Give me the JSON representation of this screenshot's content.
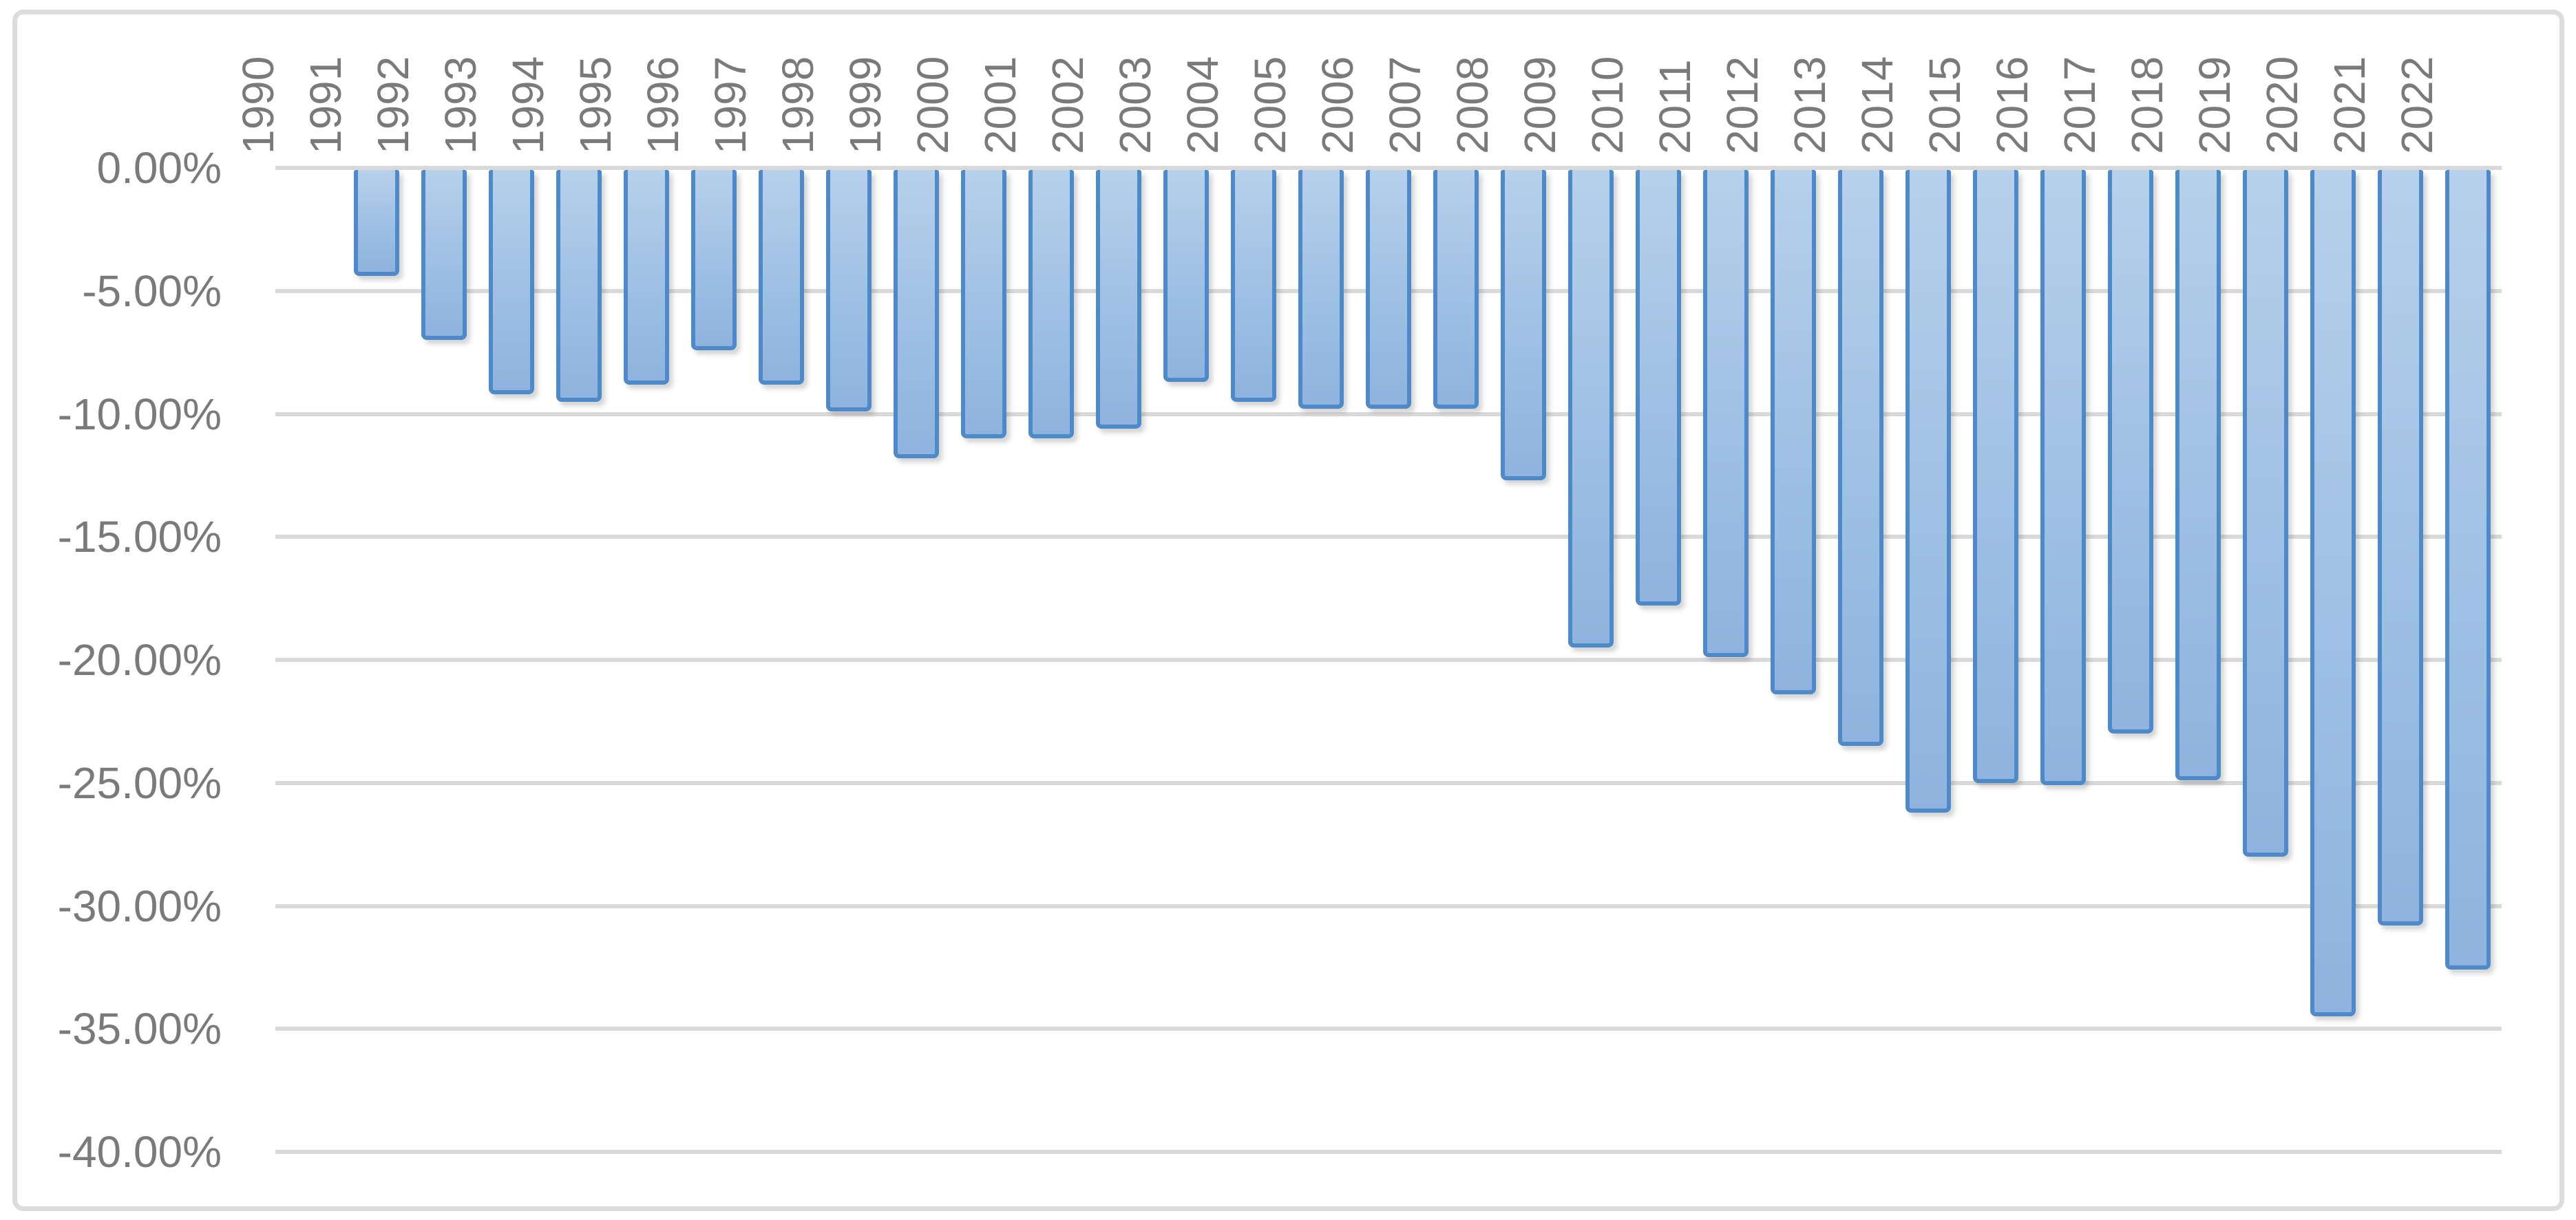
{
  "chart_data": {
    "type": "bar",
    "title": "",
    "xlabel": "",
    "ylabel": "",
    "categories": [
      "1990",
      "1991",
      "1992",
      "1993",
      "1994",
      "1995",
      "1996",
      "1997",
      "1998",
      "1999",
      "2000",
      "2001",
      "2002",
      "2003",
      "2004",
      "2005",
      "2006",
      "2007",
      "2008",
      "2009",
      "2010",
      "2011",
      "2012",
      "2013",
      "2014",
      "2015",
      "2016",
      "2017",
      "2018",
      "2019",
      "2020",
      "2021",
      "2022"
    ],
    "values": [
      0,
      -4.4,
      -7.0,
      -9.2,
      -9.5,
      -8.8,
      -7.4,
      -8.8,
      -9.9,
      -11.8,
      -11.0,
      -11.0,
      -10.6,
      -8.7,
      -9.5,
      -9.8,
      -9.8,
      -9.8,
      -12.7,
      -19.5,
      -17.8,
      -19.9,
      -21.4,
      -23.5,
      -26.2,
      -25.0,
      -25.1,
      -23.0,
      -24.9,
      -28.0,
      -34.5,
      -30.8,
      -32.6
    ],
    "value_unit": "percent",
    "y_ticks": [
      "0.00%",
      "-5.00%",
      "-10.00%",
      "-15.00%",
      "-20.00%",
      "-25.00%",
      "-30.00%",
      "-35.00%",
      "-40.00%"
    ],
    "ylim": [
      -40,
      0
    ],
    "grid": true,
    "legend_position": "none",
    "colors": {
      "bar_fill_top": "#B7D0EB",
      "bar_fill_mid": "#9EC0E4",
      "bar_fill_bottom": "#8FB3DE",
      "bar_border": "#4E8AC8",
      "gridline": "#D9D9D9",
      "axis_label": "#7A7A7A",
      "chart_border": "#DCDCDC",
      "background": "#FFFFFF"
    }
  }
}
